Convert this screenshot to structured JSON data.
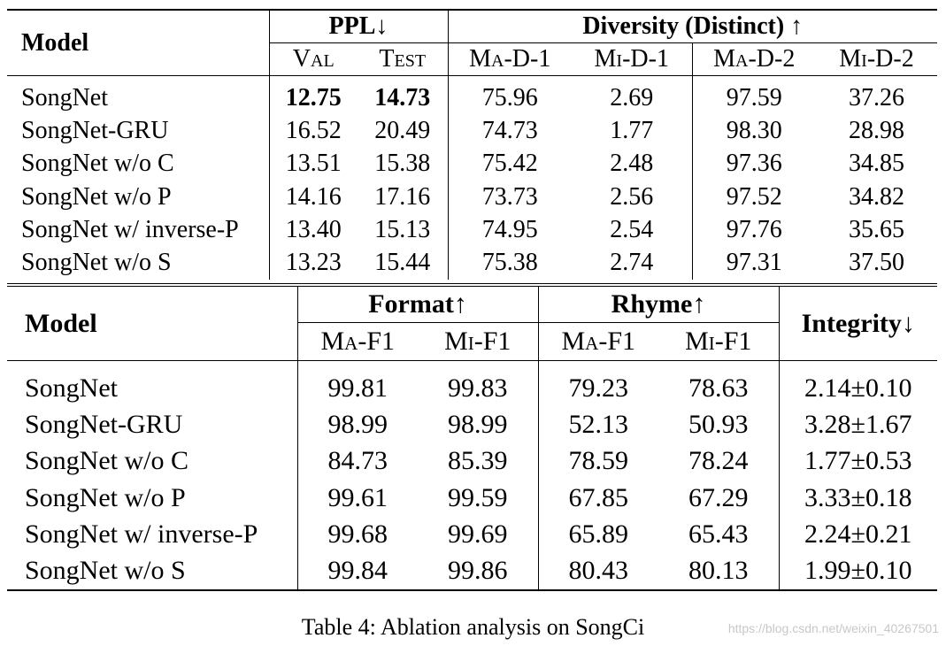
{
  "table1": {
    "header": {
      "model": "Model",
      "ppl": "PPL↓",
      "diversity": "Diversity (Distinct) ↑",
      "sub": [
        "Val",
        "Test",
        "Ma-D-1",
        "Mi-D-1",
        "Ma-D-2",
        "Mi-D-2"
      ]
    },
    "rows": [
      {
        "model": "SongNet",
        "val": "12.75",
        "test": "14.73",
        "mad1": "75.96",
        "mid1": "2.69",
        "mad2": "97.59",
        "mid2": "37.26"
      },
      {
        "model": "SongNet-GRU",
        "val": "16.52",
        "test": "20.49",
        "mad1": "74.73",
        "mid1": "1.77",
        "mad2": "98.30",
        "mid2": "28.98"
      },
      {
        "model": "SongNet w/o C",
        "val": "13.51",
        "test": "15.38",
        "mad1": "75.42",
        "mid1": "2.48",
        "mad2": "97.36",
        "mid2": "34.85"
      },
      {
        "model": "SongNet w/o P",
        "val": "14.16",
        "test": "17.16",
        "mad1": "73.73",
        "mid1": "2.56",
        "mad2": "97.52",
        "mid2": "34.82"
      },
      {
        "model": "SongNet w/ inverse-P",
        "val": "13.40",
        "test": "15.13",
        "mad1": "74.95",
        "mid1": "2.54",
        "mad2": "97.76",
        "mid2": "35.65"
      },
      {
        "model": "SongNet w/o S",
        "val": "13.23",
        "test": "15.44",
        "mad1": "75.38",
        "mid1": "2.74",
        "mad2": "97.31",
        "mid2": "37.50"
      }
    ]
  },
  "table2": {
    "header": {
      "model": "Model",
      "format": "Format↑",
      "rhyme": "Rhyme↑",
      "integrity": "Integrity↓",
      "sub": [
        "Ma-F1",
        "Mi-F1",
        "Ma-F1",
        "Mi-F1"
      ]
    },
    "rows": [
      {
        "model": "SongNet",
        "fma": "99.81",
        "fmi": "99.83",
        "rma": "79.23",
        "rmi": "78.63",
        "integrity": "2.14±0.10"
      },
      {
        "model": "SongNet-GRU",
        "fma": "98.99",
        "fmi": "98.99",
        "rma": "52.13",
        "rmi": "50.93",
        "integrity": "3.28±1.67"
      },
      {
        "model": "SongNet w/o C",
        "fma": "84.73",
        "fmi": "85.39",
        "rma": "78.59",
        "rmi": "78.24",
        "integrity": "1.77±0.53"
      },
      {
        "model": "SongNet w/o P",
        "fma": "99.61",
        "fmi": "99.59",
        "rma": "67.85",
        "rmi": "67.29",
        "integrity": "3.33±0.18"
      },
      {
        "model": "SongNet w/ inverse-P",
        "fma": "99.68",
        "fmi": "99.69",
        "rma": "65.89",
        "rmi": "65.43",
        "integrity": "2.24±0.21"
      },
      {
        "model": "SongNet w/o S",
        "fma": "99.84",
        "fmi": "99.86",
        "rma": "80.43",
        "rmi": "80.13",
        "integrity": "1.99±0.10"
      }
    ]
  },
  "caption": "Table 4: Ablation analysis on SongCi",
  "watermark": "https://blog.csdn.net/weixin_40267501"
}
